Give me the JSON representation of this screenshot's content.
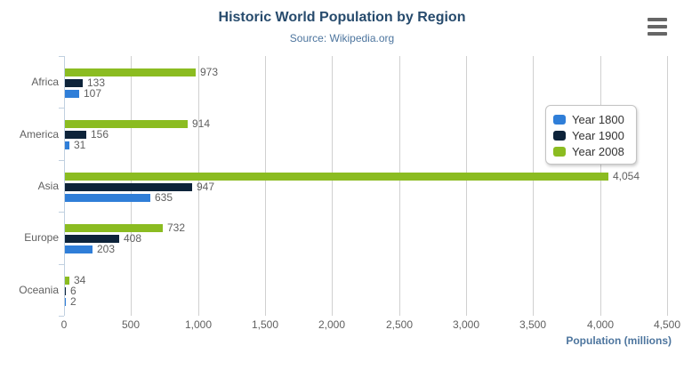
{
  "chart_data": {
    "type": "bar",
    "orientation": "horizontal",
    "title": "Historic World Population by Region",
    "subtitle": "Source: Wikipedia.org",
    "categories": [
      "Africa",
      "America",
      "Asia",
      "Europe",
      "Oceania"
    ],
    "series": [
      {
        "name": "Year 1800",
        "color": "#2f7ed8",
        "values": [
          107,
          31,
          635,
          203,
          2
        ],
        "labels": [
          "107",
          "31",
          "635",
          "203",
          "2"
        ]
      },
      {
        "name": "Year 1900",
        "color": "#0d233a",
        "values": [
          133,
          156,
          947,
          408,
          6
        ],
        "labels": [
          "133",
          "156",
          "947",
          "408",
          "6"
        ]
      },
      {
        "name": "Year 2008",
        "color": "#8bbc21",
        "values": [
          973,
          914,
          4054,
          732,
          34
        ],
        "labels": [
          "973",
          "914",
          "4,054",
          "732",
          "34"
        ]
      }
    ],
    "xlabel": "Population (millions)",
    "x_ticks": [
      "0",
      "500",
      "1,000",
      "1,500",
      "2,000",
      "2,500",
      "3,000",
      "3,500",
      "4,000",
      "4,500"
    ],
    "xlim": [
      0,
      4500
    ],
    "grid": true,
    "legend_position": "right",
    "style": {
      "title_color": "#274b6d",
      "subtitle_color": "#4d759e",
      "axis_label_color": "#606060",
      "axis_title_color": "#4d759e",
      "grid_color": "#d0d0d0",
      "axis_line_color": "#c0d0e0",
      "legend_text_color": "#333333",
      "menu_icon_color": "#666666"
    }
  }
}
